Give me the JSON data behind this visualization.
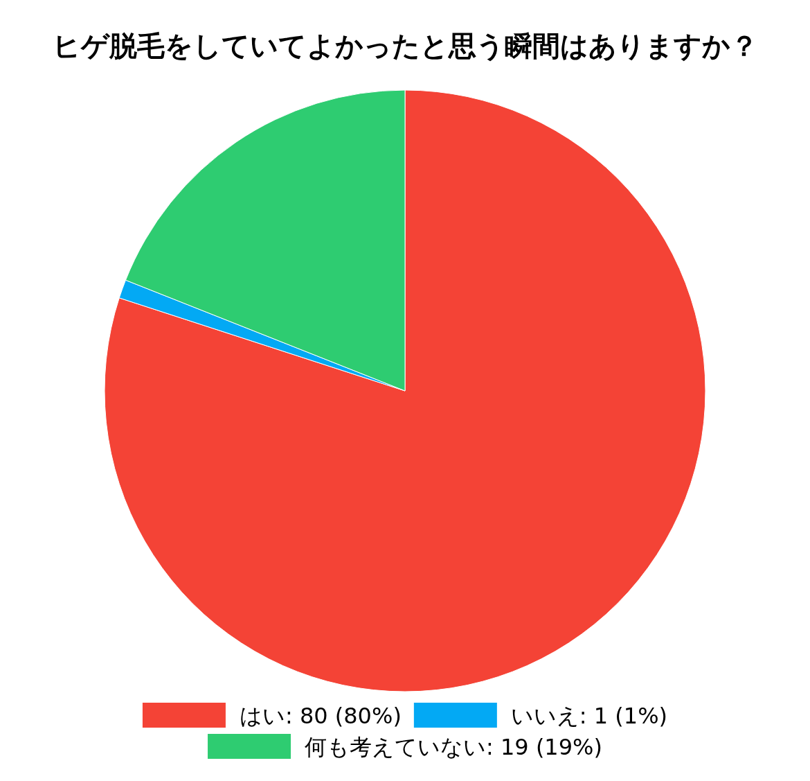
{
  "chart_data": {
    "type": "pie",
    "title": "ヒゲ脱毛をしていてよかったと思う瞬間はありますか？",
    "categories": [
      "はい",
      "いいえ",
      "何も考えていない"
    ],
    "values": [
      80,
      1,
      19
    ],
    "value_labels": [
      "80 (80%)",
      "1 (1%)",
      "19 (19%)"
    ],
    "colors": [
      "#f44336",
      "#03a9f4",
      "#2ecc71"
    ],
    "legend": "bottom"
  }
}
